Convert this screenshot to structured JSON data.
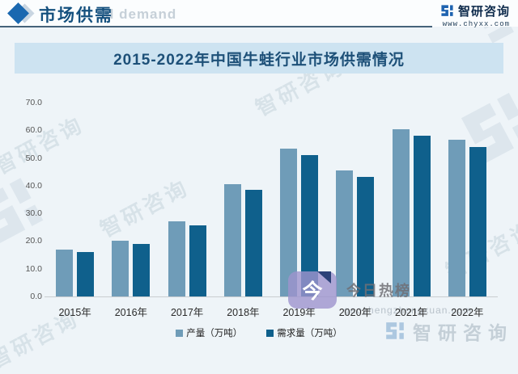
{
  "header": {
    "title": "市场供需",
    "background_watermark": "d demand",
    "brand_name": "智研咨询",
    "brand_url": "www.chyxx.com"
  },
  "chart_data": {
    "type": "bar",
    "title": "2015-2022年中国牛蛙行业市场供需情况",
    "categories": [
      "2015年",
      "2016年",
      "2017年",
      "2018年",
      "2019年",
      "2020年",
      "2021年",
      "2022年"
    ],
    "series": [
      {
        "name": "产量（万吨）",
        "color": "#6f9cb8",
        "values": [
          17.0,
          20.0,
          27.0,
          40.5,
          53.5,
          45.5,
          60.5,
          56.7
        ]
      },
      {
        "name": "需求量（万吨）",
        "color": "#0f608c",
        "values": [
          16.1,
          19.0,
          25.7,
          38.5,
          51.0,
          43.3,
          58.0,
          53.9
        ]
      }
    ],
    "xlabel": "",
    "ylabel": "",
    "ylim": [
      0,
      70
    ],
    "ytick_step": 10,
    "grid": false,
    "legend_position": "bottom"
  },
  "watermarks": {
    "hot_badge_label": "今日热榜",
    "hot_badge_icon_char": "今",
    "hot_badge_color": "#9e93cd",
    "site_text": "gaozhengzhongxuan.com",
    "footer_brand": "智研咨询",
    "diagonal_text": "智研咨询"
  },
  "colors": {
    "accent_blue": "#1a68b0",
    "header_title": "#14507e",
    "chart_title": "#1d5078",
    "title_band_bg": "#cde3f1",
    "page_bg": "#eef4f8",
    "divider": "#46637a",
    "brand_navy": "#0e2b4c",
    "series_light": "#6f9cb8",
    "series_dark": "#0f608c"
  }
}
